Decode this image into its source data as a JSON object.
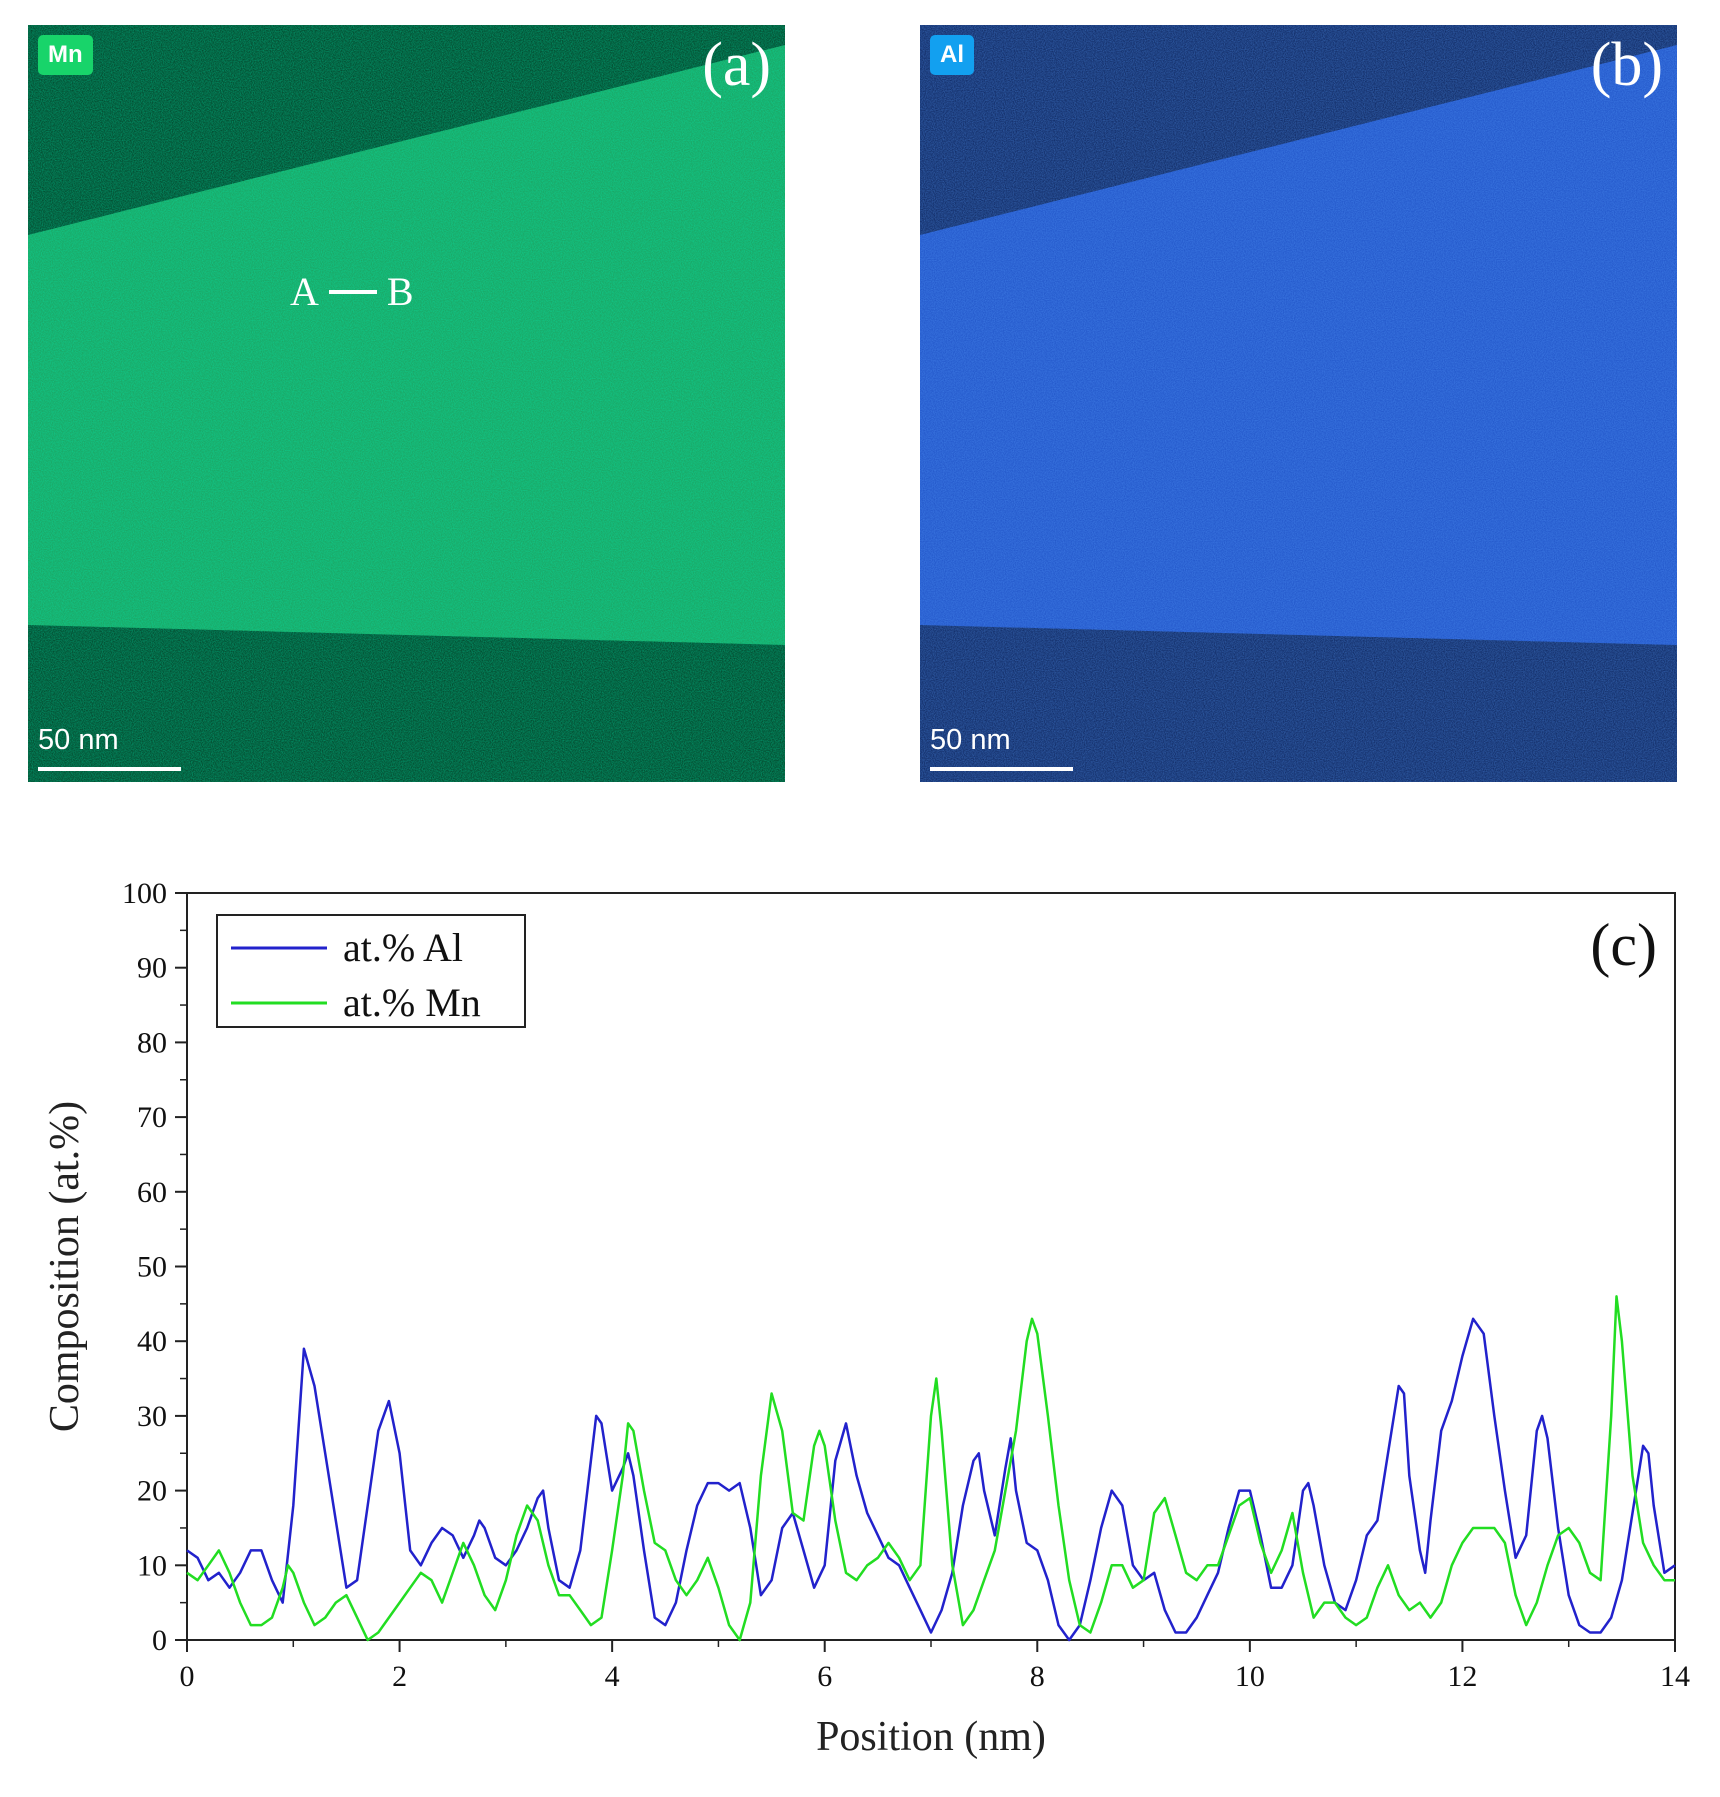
{
  "panels": {
    "a": {
      "label": "(a)",
      "element": "Mn",
      "badge_color": "#18d46a",
      "scale": "50 nm",
      "line_start": "A",
      "line_end": "B"
    },
    "b": {
      "label": "(b)",
      "element": "Al",
      "badge_color": "#12a0f0",
      "scale": "50 nm"
    }
  },
  "colors": {
    "mn_bright": "#1f9a58",
    "mn_dark": "#05331b",
    "al_bright": "#1d4fc4",
    "al_dark": "#0a1f55",
    "series_al": "#2222cc",
    "series_mn": "#22dd22"
  },
  "chart_data": {
    "type": "line",
    "panel_label": "(c)",
    "xlabel": "Position (nm)",
    "ylabel": "Composition (at.%)",
    "xlim": [
      0,
      14
    ],
    "ylim": [
      0,
      100
    ],
    "xticks": [
      "0",
      "2",
      "4",
      "6",
      "8",
      "10",
      "12",
      "14"
    ],
    "yticks": [
      "0",
      "10",
      "20",
      "30",
      "40",
      "50",
      "60",
      "70",
      "80",
      "90",
      "100"
    ],
    "legend_position": "top-left",
    "series": [
      {
        "name": "at.% Al",
        "color": "#2222cc",
        "points": [
          [
            0,
            12
          ],
          [
            0.1,
            11
          ],
          [
            0.2,
            8
          ],
          [
            0.3,
            9
          ],
          [
            0.4,
            7
          ],
          [
            0.5,
            9
          ],
          [
            0.6,
            12
          ],
          [
            0.7,
            12
          ],
          [
            0.8,
            8
          ],
          [
            0.9,
            5
          ],
          [
            1.0,
            18
          ],
          [
            1.1,
            39
          ],
          [
            1.2,
            34
          ],
          [
            1.3,
            25
          ],
          [
            1.4,
            16
          ],
          [
            1.5,
            7
          ],
          [
            1.6,
            8
          ],
          [
            1.7,
            18
          ],
          [
            1.8,
            28
          ],
          [
            1.9,
            32
          ],
          [
            2.0,
            25
          ],
          [
            2.1,
            12
          ],
          [
            2.2,
            10
          ],
          [
            2.3,
            13
          ],
          [
            2.4,
            15
          ],
          [
            2.5,
            14
          ],
          [
            2.6,
            11
          ],
          [
            2.7,
            14
          ],
          [
            2.75,
            16
          ],
          [
            2.8,
            15
          ],
          [
            2.9,
            11
          ],
          [
            3.0,
            10
          ],
          [
            3.1,
            12
          ],
          [
            3.2,
            15
          ],
          [
            3.3,
            19
          ],
          [
            3.35,
            20
          ],
          [
            3.4,
            15
          ],
          [
            3.5,
            8
          ],
          [
            3.6,
            7
          ],
          [
            3.7,
            12
          ],
          [
            3.8,
            24
          ],
          [
            3.85,
            30
          ],
          [
            3.9,
            29
          ],
          [
            4.0,
            20
          ],
          [
            4.1,
            23
          ],
          [
            4.15,
            25
          ],
          [
            4.2,
            22
          ],
          [
            4.3,
            12
          ],
          [
            4.4,
            3
          ],
          [
            4.5,
            2
          ],
          [
            4.6,
            5
          ],
          [
            4.7,
            12
          ],
          [
            4.8,
            18
          ],
          [
            4.9,
            21
          ],
          [
            5.0,
            21
          ],
          [
            5.1,
            20
          ],
          [
            5.2,
            21
          ],
          [
            5.3,
            15
          ],
          [
            5.4,
            6
          ],
          [
            5.5,
            8
          ],
          [
            5.6,
            15
          ],
          [
            5.7,
            17
          ],
          [
            5.8,
            12
          ],
          [
            5.9,
            7
          ],
          [
            6.0,
            10
          ],
          [
            6.1,
            24
          ],
          [
            6.2,
            29
          ],
          [
            6.3,
            22
          ],
          [
            6.4,
            17
          ],
          [
            6.5,
            14
          ],
          [
            6.6,
            11
          ],
          [
            6.7,
            10
          ],
          [
            6.8,
            7
          ],
          [
            6.9,
            4
          ],
          [
            7.0,
            1
          ],
          [
            7.1,
            4
          ],
          [
            7.2,
            9
          ],
          [
            7.3,
            18
          ],
          [
            7.4,
            24
          ],
          [
            7.45,
            25
          ],
          [
            7.5,
            20
          ],
          [
            7.6,
            14
          ],
          [
            7.7,
            23
          ],
          [
            7.75,
            27
          ],
          [
            7.8,
            20
          ],
          [
            7.9,
            13
          ],
          [
            8.0,
            12
          ],
          [
            8.1,
            8
          ],
          [
            8.2,
            2
          ],
          [
            8.3,
            0
          ],
          [
            8.4,
            2
          ],
          [
            8.5,
            8
          ],
          [
            8.6,
            15
          ],
          [
            8.7,
            20
          ],
          [
            8.8,
            18
          ],
          [
            8.9,
            10
          ],
          [
            9.0,
            8
          ],
          [
            9.1,
            9
          ],
          [
            9.2,
            4
          ],
          [
            9.3,
            1
          ],
          [
            9.4,
            1
          ],
          [
            9.5,
            3
          ],
          [
            9.6,
            6
          ],
          [
            9.7,
            9
          ],
          [
            9.8,
            15
          ],
          [
            9.9,
            20
          ],
          [
            10.0,
            20
          ],
          [
            10.1,
            14
          ],
          [
            10.2,
            7
          ],
          [
            10.3,
            7
          ],
          [
            10.4,
            10
          ],
          [
            10.5,
            20
          ],
          [
            10.55,
            21
          ],
          [
            10.6,
            18
          ],
          [
            10.7,
            10
          ],
          [
            10.8,
            5
          ],
          [
            10.9,
            4
          ],
          [
            11.0,
            8
          ],
          [
            11.1,
            14
          ],
          [
            11.2,
            16
          ],
          [
            11.3,
            25
          ],
          [
            11.4,
            34
          ],
          [
            11.45,
            33
          ],
          [
            11.5,
            22
          ],
          [
            11.6,
            12
          ],
          [
            11.65,
            9
          ],
          [
            11.7,
            16
          ],
          [
            11.8,
            28
          ],
          [
            11.9,
            32
          ],
          [
            12.0,
            38
          ],
          [
            12.1,
            43
          ],
          [
            12.2,
            41
          ],
          [
            12.3,
            30
          ],
          [
            12.4,
            20
          ],
          [
            12.5,
            11
          ],
          [
            12.6,
            14
          ],
          [
            12.7,
            28
          ],
          [
            12.75,
            30
          ],
          [
            12.8,
            27
          ],
          [
            12.9,
            15
          ],
          [
            13.0,
            6
          ],
          [
            13.1,
            2
          ],
          [
            13.2,
            1
          ],
          [
            13.3,
            1
          ],
          [
            13.4,
            3
          ],
          [
            13.5,
            8
          ],
          [
            13.6,
            17
          ],
          [
            13.7,
            26
          ],
          [
            13.75,
            25
          ],
          [
            13.8,
            18
          ],
          [
            13.9,
            9
          ],
          [
            14.0,
            10
          ]
        ]
      },
      {
        "name": "at.% Mn",
        "color": "#22dd22",
        "points": [
          [
            0,
            9
          ],
          [
            0.1,
            8
          ],
          [
            0.2,
            10
          ],
          [
            0.3,
            12
          ],
          [
            0.4,
            9
          ],
          [
            0.5,
            5
          ],
          [
            0.6,
            2
          ],
          [
            0.7,
            2
          ],
          [
            0.8,
            3
          ],
          [
            0.9,
            7
          ],
          [
            0.95,
            10
          ],
          [
            1.0,
            9
          ],
          [
            1.1,
            5
          ],
          [
            1.2,
            2
          ],
          [
            1.3,
            3
          ],
          [
            1.4,
            5
          ],
          [
            1.5,
            6
          ],
          [
            1.6,
            3
          ],
          [
            1.7,
            0
          ],
          [
            1.8,
            1
          ],
          [
            1.9,
            3
          ],
          [
            2.0,
            5
          ],
          [
            2.1,
            7
          ],
          [
            2.2,
            9
          ],
          [
            2.3,
            8
          ],
          [
            2.4,
            5
          ],
          [
            2.5,
            9
          ],
          [
            2.6,
            13
          ],
          [
            2.7,
            10
          ],
          [
            2.8,
            6
          ],
          [
            2.9,
            4
          ],
          [
            3.0,
            8
          ],
          [
            3.1,
            14
          ],
          [
            3.2,
            18
          ],
          [
            3.3,
            16
          ],
          [
            3.4,
            10
          ],
          [
            3.5,
            6
          ],
          [
            3.6,
            6
          ],
          [
            3.7,
            4
          ],
          [
            3.8,
            2
          ],
          [
            3.9,
            3
          ],
          [
            4.0,
            12
          ],
          [
            4.1,
            22
          ],
          [
            4.15,
            29
          ],
          [
            4.2,
            28
          ],
          [
            4.3,
            20
          ],
          [
            4.4,
            13
          ],
          [
            4.5,
            12
          ],
          [
            4.6,
            8
          ],
          [
            4.7,
            6
          ],
          [
            4.8,
            8
          ],
          [
            4.9,
            11
          ],
          [
            5.0,
            7
          ],
          [
            5.1,
            2
          ],
          [
            5.2,
            0
          ],
          [
            5.3,
            5
          ],
          [
            5.4,
            22
          ],
          [
            5.5,
            33
          ],
          [
            5.6,
            28
          ],
          [
            5.7,
            17
          ],
          [
            5.8,
            16
          ],
          [
            5.9,
            26
          ],
          [
            5.95,
            28
          ],
          [
            6.0,
            26
          ],
          [
            6.1,
            16
          ],
          [
            6.2,
            9
          ],
          [
            6.3,
            8
          ],
          [
            6.4,
            10
          ],
          [
            6.5,
            11
          ],
          [
            6.6,
            13
          ],
          [
            6.7,
            11
          ],
          [
            6.8,
            8
          ],
          [
            6.9,
            10
          ],
          [
            7.0,
            30
          ],
          [
            7.05,
            35
          ],
          [
            7.1,
            28
          ],
          [
            7.2,
            10
          ],
          [
            7.3,
            2
          ],
          [
            7.4,
            4
          ],
          [
            7.5,
            8
          ],
          [
            7.6,
            12
          ],
          [
            7.7,
            20
          ],
          [
            7.8,
            28
          ],
          [
            7.9,
            40
          ],
          [
            7.95,
            43
          ],
          [
            8.0,
            41
          ],
          [
            8.1,
            30
          ],
          [
            8.2,
            18
          ],
          [
            8.3,
            8
          ],
          [
            8.4,
            2
          ],
          [
            8.5,
            1
          ],
          [
            8.6,
            5
          ],
          [
            8.7,
            10
          ],
          [
            8.8,
            10
          ],
          [
            8.9,
            7
          ],
          [
            9.0,
            8
          ],
          [
            9.1,
            17
          ],
          [
            9.2,
            19
          ],
          [
            9.3,
            14
          ],
          [
            9.4,
            9
          ],
          [
            9.5,
            8
          ],
          [
            9.6,
            10
          ],
          [
            9.7,
            10
          ],
          [
            9.8,
            14
          ],
          [
            9.9,
            18
          ],
          [
            10.0,
            19
          ],
          [
            10.1,
            13
          ],
          [
            10.2,
            9
          ],
          [
            10.3,
            12
          ],
          [
            10.4,
            17
          ],
          [
            10.5,
            9
          ],
          [
            10.6,
            3
          ],
          [
            10.7,
            5
          ],
          [
            10.8,
            5
          ],
          [
            10.9,
            3
          ],
          [
            11.0,
            2
          ],
          [
            11.1,
            3
          ],
          [
            11.2,
            7
          ],
          [
            11.3,
            10
          ],
          [
            11.4,
            6
          ],
          [
            11.5,
            4
          ],
          [
            11.6,
            5
          ],
          [
            11.7,
            3
          ],
          [
            11.8,
            5
          ],
          [
            11.9,
            10
          ],
          [
            12.0,
            13
          ],
          [
            12.1,
            15
          ],
          [
            12.2,
            15
          ],
          [
            12.3,
            15
          ],
          [
            12.4,
            13
          ],
          [
            12.5,
            6
          ],
          [
            12.6,
            2
          ],
          [
            12.7,
            5
          ],
          [
            12.8,
            10
          ],
          [
            12.9,
            14
          ],
          [
            13.0,
            15
          ],
          [
            13.1,
            13
          ],
          [
            13.2,
            9
          ],
          [
            13.3,
            8
          ],
          [
            13.4,
            30
          ],
          [
            13.45,
            46
          ],
          [
            13.5,
            40
          ],
          [
            13.6,
            22
          ],
          [
            13.7,
            13
          ],
          [
            13.8,
            10
          ],
          [
            13.9,
            8
          ],
          [
            14.0,
            8
          ]
        ]
      }
    ]
  }
}
